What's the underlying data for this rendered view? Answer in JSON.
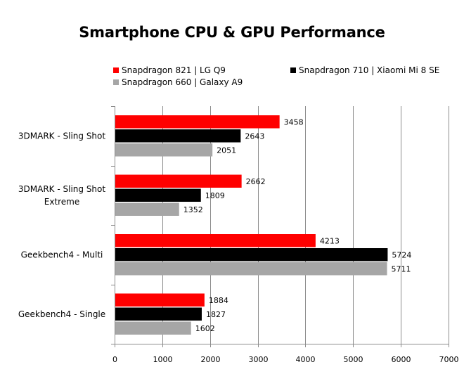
{
  "chart_data": {
    "type": "bar",
    "orientation": "horizontal",
    "title": "Smartphone CPU & GPU Performance",
    "xlabel": "",
    "ylabel": "",
    "categories": [
      [
        "3DMARK - Sling Shot"
      ],
      [
        "3DMARK - Sling Shot",
        "Extreme"
      ],
      [
        "Geekbench4 - Multi"
      ],
      [
        "Geekbench4 - Single"
      ]
    ],
    "series": [
      {
        "name": "Snapdragon 821 | LG Q9",
        "color": "#ff0000",
        "values": [
          3458,
          2662,
          4213,
          1884
        ]
      },
      {
        "name": "Snapdragon 710 | Xiaomi Mi 8 SE",
        "color": "#000000",
        "values": [
          2643,
          1809,
          5724,
          1827
        ]
      },
      {
        "name": "Snapdragon 660 | Galaxy A9",
        "color": "#a6a6a6",
        "values": [
          2051,
          1352,
          5711,
          1602
        ]
      }
    ],
    "xlim": [
      0,
      7000
    ],
    "xticks": [
      0,
      1000,
      2000,
      3000,
      4000,
      5000,
      6000,
      7000
    ],
    "grid": true,
    "legend_position": "top"
  }
}
